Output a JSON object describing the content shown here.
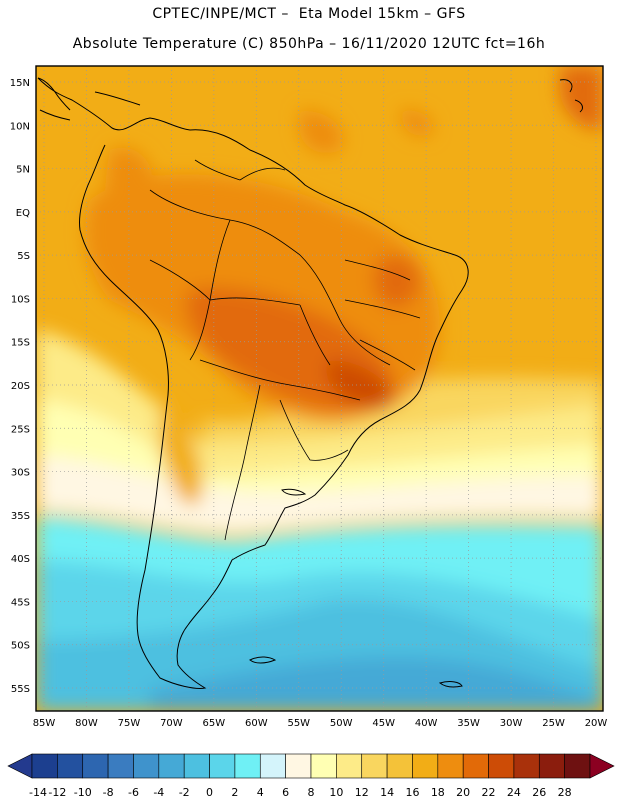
{
  "header": {
    "line1": "CPTEC/INPE/MCT –  Eta Model 15km – GFS",
    "line2": "Absolute Temperature (C) 850hPa – 16/11/2020 12UTC fct=16h"
  },
  "map": {
    "lat_labels": [
      "15N",
      "10N",
      "5N",
      "EQ",
      "5S",
      "10S",
      "15S",
      "20S",
      "25S",
      "30S",
      "35S",
      "40S",
      "45S",
      "50S",
      "55S"
    ],
    "lon_labels": [
      "85W",
      "80W",
      "75W",
      "70W",
      "65W",
      "60W",
      "55W",
      "50W",
      "45W",
      "40W",
      "35W",
      "30W",
      "25W",
      "20W"
    ],
    "lon_range": [
      -86,
      -20
    ],
    "lat_range": [
      -58,
      16
    ],
    "grid": "dotted",
    "variable": "Absolute Temperature (C) 850hPa"
  },
  "colorbar": {
    "labels": [
      "-14",
      "-12",
      "-10",
      "-8",
      "-6",
      "-4",
      "-2",
      "0",
      "2",
      "4",
      "6",
      "8",
      "10",
      "12",
      "14",
      "16",
      "18",
      "20",
      "22",
      "24",
      "26",
      "28"
    ],
    "colors": [
      "#1c3f8f",
      "#23519f",
      "#2d66b0",
      "#3a7cc0",
      "#3f93cc",
      "#45a9d6",
      "#4dc0e0",
      "#5bd5ea",
      "#6ff0f5",
      "#d4f4fb",
      "#fff7e3",
      "#ffffb3",
      "#fdeb88",
      "#f9d65f",
      "#f4c239",
      "#f2ad16",
      "#ee8d0f",
      "#e26a08",
      "#cd4c06",
      "#a9310b",
      "#8b1d0d",
      "#6e1111"
    ],
    "under_color": "#233a8e",
    "over_color": "#8b0021"
  }
}
